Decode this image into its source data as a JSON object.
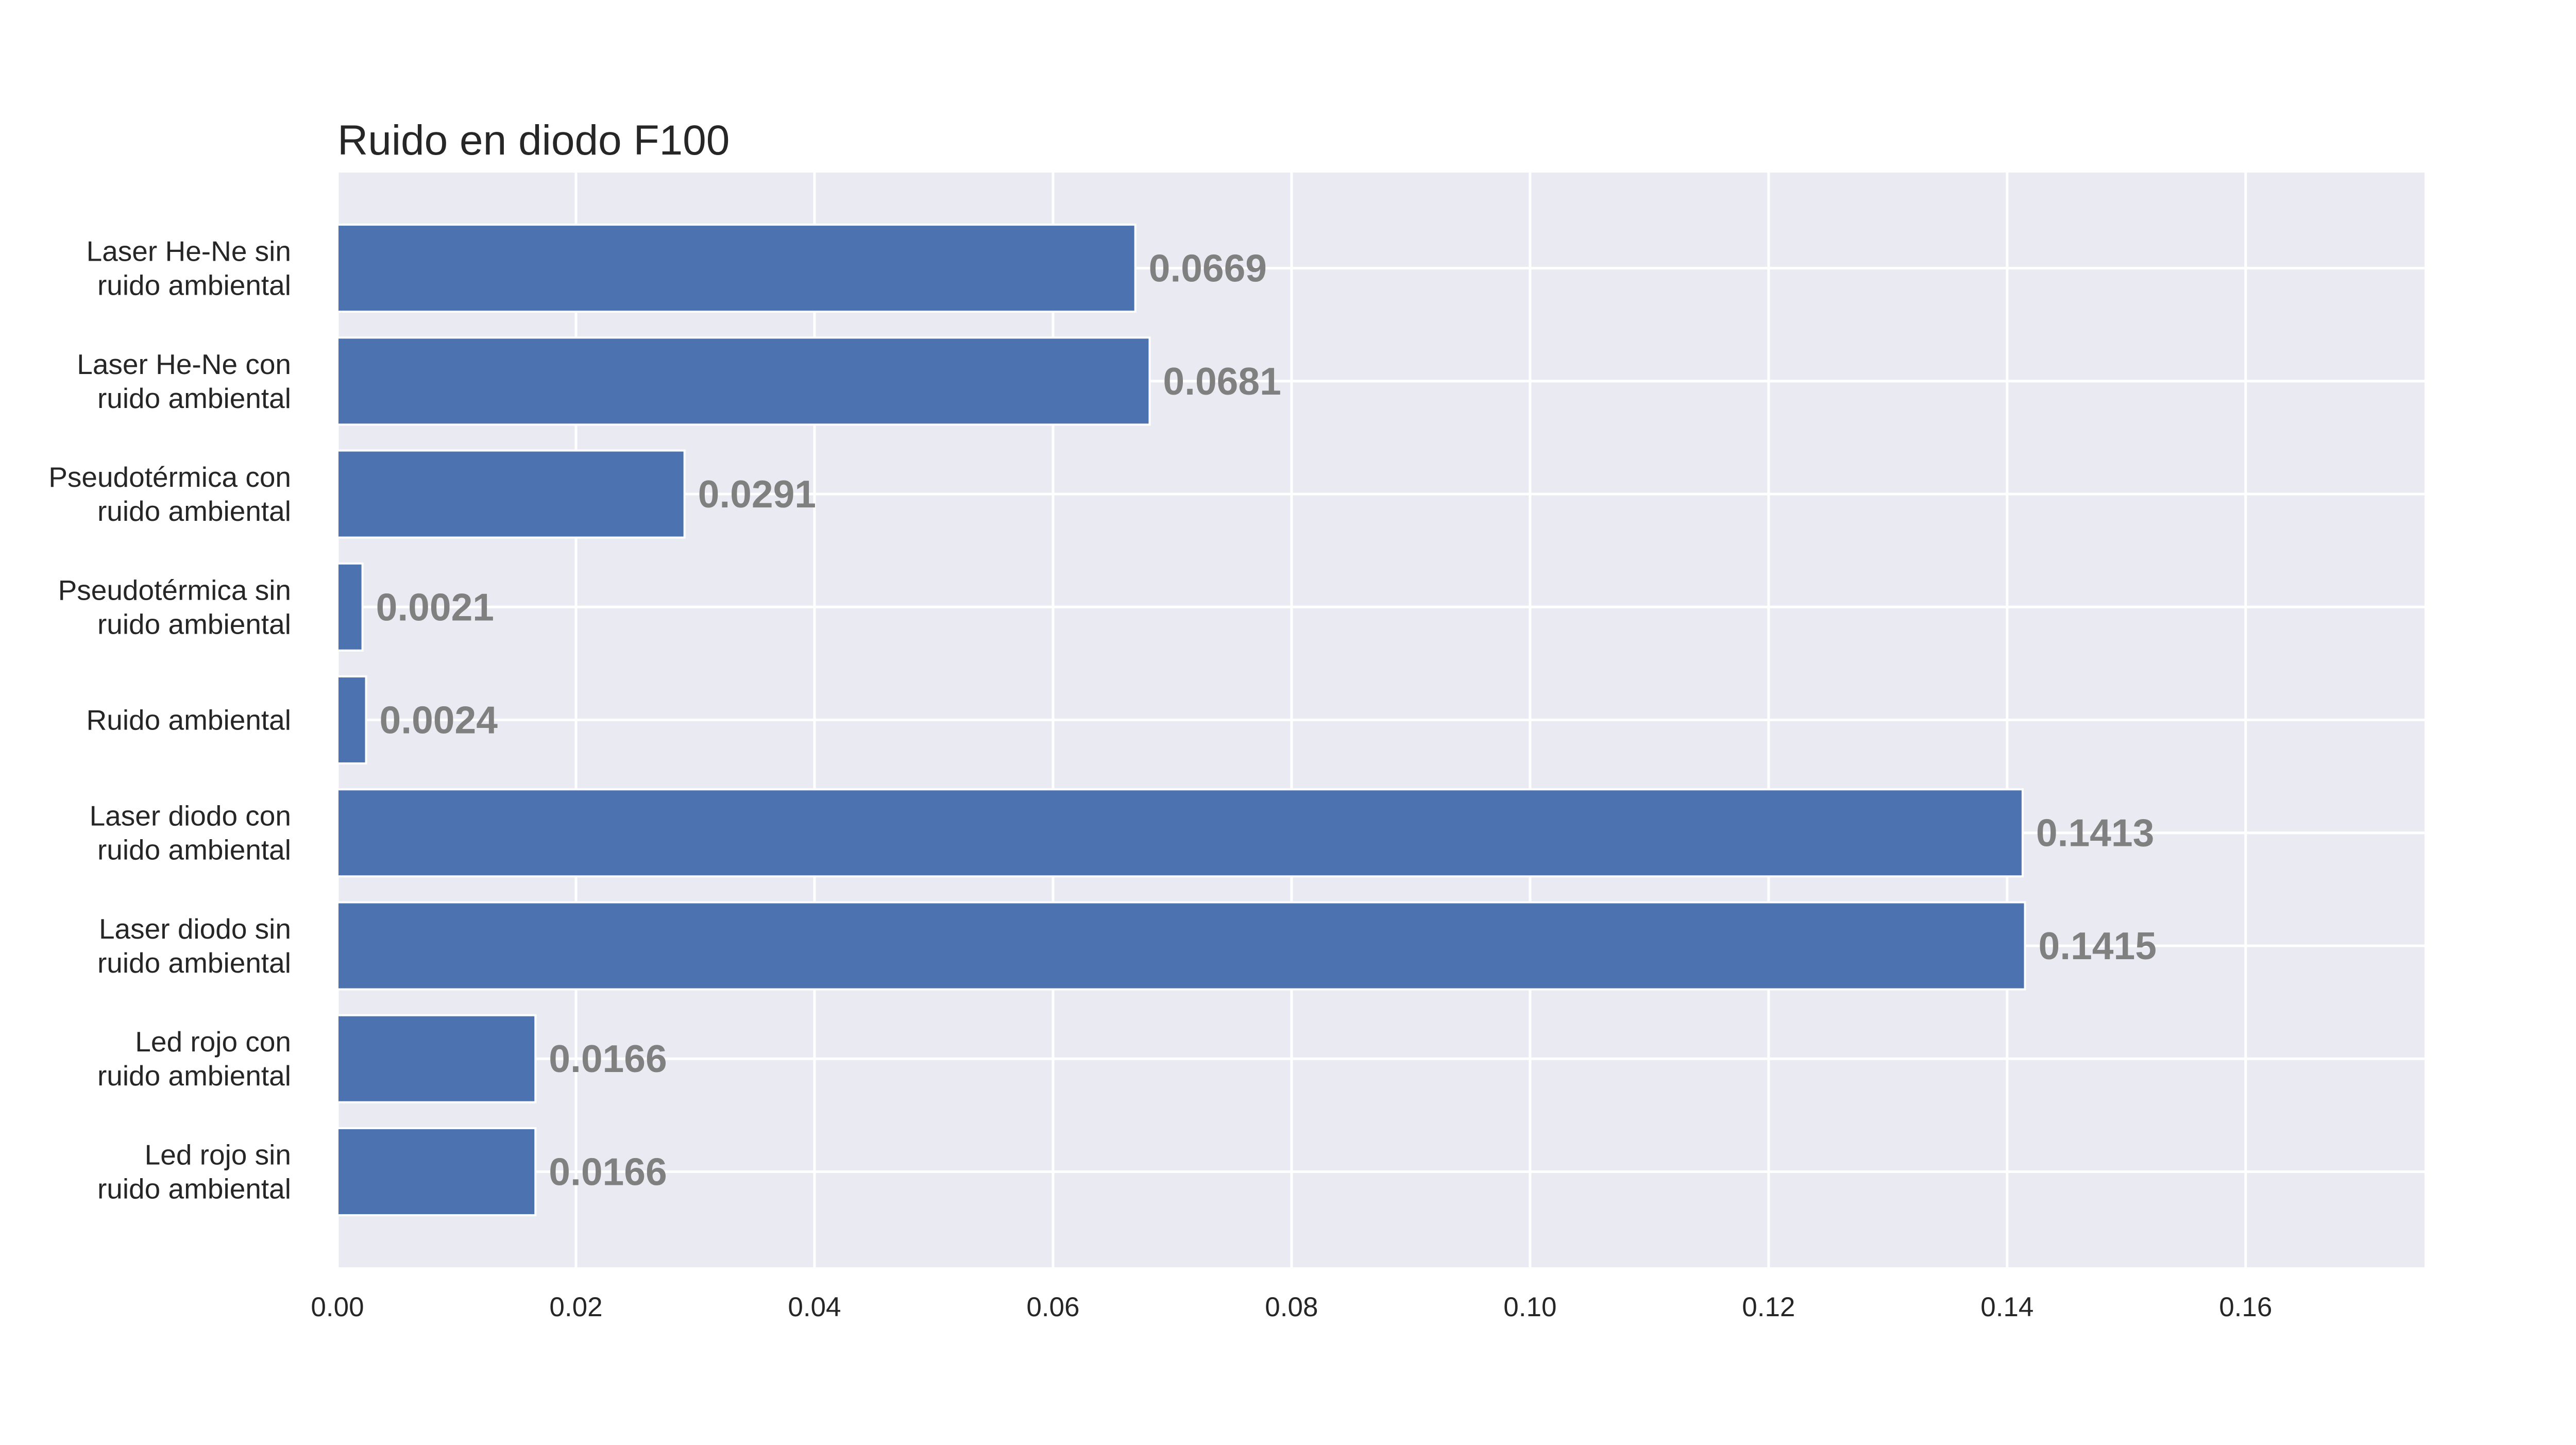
{
  "chart_data": {
    "type": "bar",
    "orientation": "horizontal",
    "title": "Ruido en diodo F100",
    "xlabel": "",
    "ylabel": "",
    "xlim": [
      0,
      0.175
    ],
    "x_ticks": [
      "0.00",
      "0.02",
      "0.04",
      "0.06",
      "0.08",
      "0.10",
      "0.12",
      "0.14",
      "0.16"
    ],
    "grid": true,
    "categories": [
      "Laser He-Ne sin\nruido ambiental",
      "Laser He-Ne con\nruido ambiental",
      "Pseudotérmica con\nruido ambiental",
      "Pseudotérmica sin\nruido ambiental",
      "Ruido ambiental",
      "Laser diodo con\nruido ambiental",
      "Laser diodo sin\nruido ambiental",
      "Led rojo con\nruido ambiental",
      "Led rojo sin\nruido ambiental"
    ],
    "values": [
      0.0669,
      0.0681,
      0.0291,
      0.0021,
      0.0024,
      0.1413,
      0.1415,
      0.0166,
      0.0166
    ],
    "value_labels": [
      "0.0669",
      "0.0681",
      "0.0291",
      "0.0021",
      "0.0024",
      "0.1413",
      "0.1415",
      "0.0166",
      "0.0166"
    ],
    "colors": {
      "bar": "#4c72b0",
      "plot_background": "#eaeaf2",
      "grid": "#ffffff",
      "value_label": "#808080",
      "text": "#262626"
    }
  }
}
